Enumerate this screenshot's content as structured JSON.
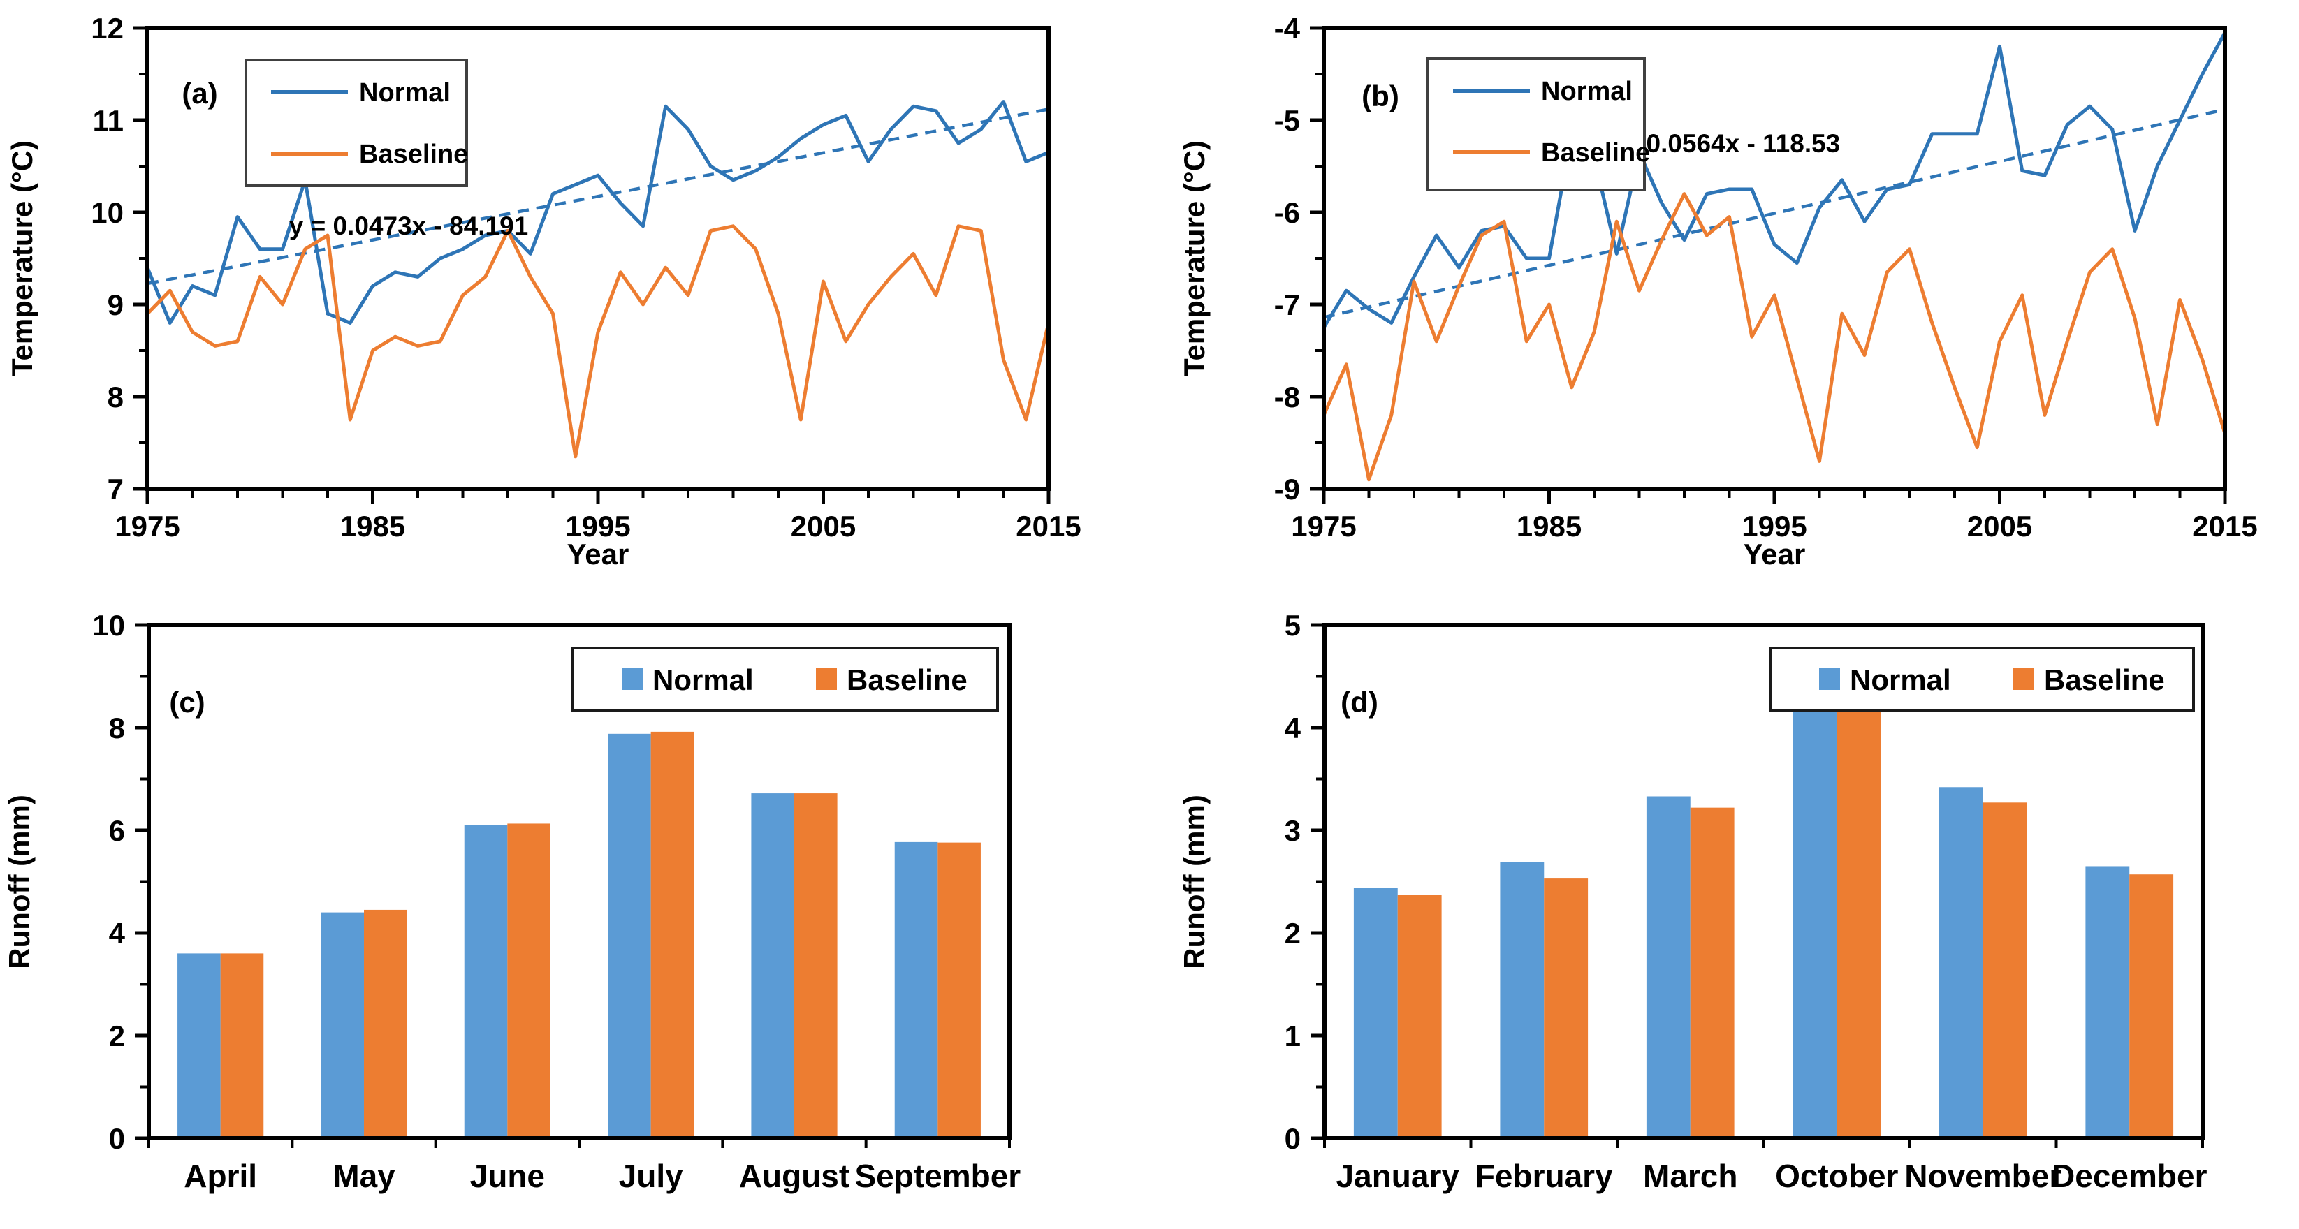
{
  "figure_title": "",
  "colors": {
    "line_blue": "#2E75B6",
    "bar_blue": "#5B9BD5",
    "orange": "#ED7D31",
    "axis": "#000000",
    "background": "#FFFFFF"
  },
  "chart_data": [
    {
      "id": "a",
      "type": "line",
      "panel_label": "(a)",
      "xlabel": "Year",
      "ylabel": "Temperature (°C)",
      "xlim": [
        1975,
        2015
      ],
      "ylim": [
        7,
        12
      ],
      "xticks": [
        1975,
        1985,
        1995,
        2005,
        2015
      ],
      "yticks": [
        7,
        8,
        9,
        10,
        11,
        12
      ],
      "x_minor_step": 2,
      "y_minor_step": 0.5,
      "x_start": 1975,
      "legend_style": "line-stacked",
      "series": [
        {
          "name": "Normal",
          "color_key": "line_blue",
          "values": [
            9.4,
            8.8,
            9.2,
            9.1,
            9.95,
            9.6,
            9.6,
            10.35,
            8.9,
            8.8,
            9.2,
            9.35,
            9.3,
            9.5,
            9.6,
            9.75,
            9.8,
            9.55,
            10.2,
            10.3,
            10.4,
            10.1,
            9.85,
            11.15,
            10.9,
            10.5,
            10.35,
            10.45,
            10.6,
            10.8,
            10.95,
            11.05,
            10.55,
            10.9,
            11.15,
            11.1,
            10.75,
            10.9,
            11.2,
            10.55,
            10.65
          ]
        },
        {
          "name": "Baseline",
          "color_key": "orange",
          "values": [
            8.9,
            9.15,
            8.7,
            8.55,
            8.6,
            9.3,
            9.0,
            9.6,
            9.75,
            7.75,
            8.5,
            8.65,
            8.55,
            8.6,
            9.1,
            9.3,
            9.8,
            9.3,
            8.9,
            7.35,
            8.7,
            9.35,
            9.0,
            9.4,
            9.1,
            9.8,
            9.85,
            9.6,
            8.9,
            7.75,
            9.25,
            8.6,
            9.0,
            9.3,
            9.55,
            9.1,
            9.85,
            9.8,
            8.4,
            7.75,
            8.8
          ]
        }
      ],
      "trendline": {
        "equation": "y = 0.0473x - 84.191",
        "slope": 0.0473,
        "intercept": -84.191,
        "color_key": "line_blue"
      }
    },
    {
      "id": "b",
      "type": "line",
      "panel_label": "(b)",
      "xlabel": "Year",
      "ylabel": "Temperature (°C)",
      "xlim": [
        1975,
        2015
      ],
      "ylim": [
        -9,
        -4
      ],
      "xticks": [
        1975,
        1985,
        1995,
        2005,
        2015
      ],
      "yticks": [
        -9,
        -8,
        -7,
        -6,
        -5,
        -4
      ],
      "x_minor_step": 2,
      "y_minor_step": 0.5,
      "x_start": 1975,
      "legend_style": "line-stacked",
      "series": [
        {
          "name": "Normal",
          "color_key": "line_blue",
          "values": [
            -7.25,
            -6.85,
            -7.05,
            -7.2,
            -6.7,
            -6.25,
            -6.6,
            -6.2,
            -6.15,
            -6.5,
            -6.5,
            -5.15,
            -5.4,
            -6.45,
            -5.35,
            -5.9,
            -6.3,
            -5.8,
            -5.75,
            -5.75,
            -6.35,
            -6.55,
            -5.95,
            -5.65,
            -6.1,
            -5.75,
            -5.7,
            -5.15,
            -5.15,
            -5.15,
            -4.2,
            -5.55,
            -5.6,
            -5.05,
            -4.85,
            -5.1,
            -6.2,
            -5.5,
            -5.0,
            -4.5,
            -4.05
          ]
        },
        {
          "name": "Baseline",
          "color_key": "orange",
          "values": [
            -8.2,
            -7.65,
            -8.9,
            -8.2,
            -6.75,
            -7.4,
            -6.8,
            -6.25,
            -6.1,
            -7.4,
            -7.0,
            -7.9,
            -7.3,
            -6.1,
            -6.85,
            -6.3,
            -5.8,
            -6.25,
            -6.05,
            -7.35,
            -6.9,
            -7.8,
            -8.7,
            -7.1,
            -7.55,
            -6.65,
            -6.4,
            -7.2,
            -7.9,
            -8.55,
            -7.4,
            -6.9,
            -8.2,
            -7.4,
            -6.65,
            -6.4,
            -7.15,
            -8.3,
            -6.95,
            -7.6,
            -8.4
          ]
        }
      ],
      "trendline": {
        "equation": "y = 0.0564x - 118.53",
        "slope": 0.0564,
        "intercept": -118.53,
        "color_key": "line_blue"
      }
    },
    {
      "id": "c",
      "type": "bar",
      "panel_label": "(c)",
      "xlabel": "",
      "ylabel": "Runoff (mm)",
      "categories": [
        "April",
        "May",
        "June",
        "July",
        "August",
        "September"
      ],
      "ylim": [
        0,
        10
      ],
      "yticks": [
        0,
        2,
        4,
        6,
        8,
        10
      ],
      "y_minor_step": 1,
      "legend_style": "bar-horizontal",
      "series": [
        {
          "name": "Normal",
          "color_key": "bar_blue",
          "values": [
            3.6,
            4.4,
            6.1,
            7.88,
            6.72,
            5.77
          ]
        },
        {
          "name": "Baseline",
          "color_key": "orange",
          "values": [
            3.6,
            4.45,
            6.13,
            7.92,
            6.72,
            5.76
          ]
        }
      ]
    },
    {
      "id": "d",
      "type": "bar",
      "panel_label": "(d)",
      "xlabel": "",
      "ylabel": "Runoff (mm)",
      "categories": [
        "January",
        "February",
        "March",
        "October",
        "November",
        "December"
      ],
      "ylim": [
        0,
        5
      ],
      "yticks": [
        0,
        1,
        2,
        3,
        4,
        5
      ],
      "y_minor_step": 0.5,
      "legend_style": "bar-horizontal",
      "series": [
        {
          "name": "Normal",
          "color_key": "bar_blue",
          "values": [
            2.44,
            2.69,
            3.33,
            4.21,
            3.42,
            2.65
          ]
        },
        {
          "name": "Baseline",
          "color_key": "orange",
          "values": [
            2.37,
            2.53,
            3.22,
            4.24,
            3.27,
            2.57
          ]
        }
      ]
    }
  ]
}
